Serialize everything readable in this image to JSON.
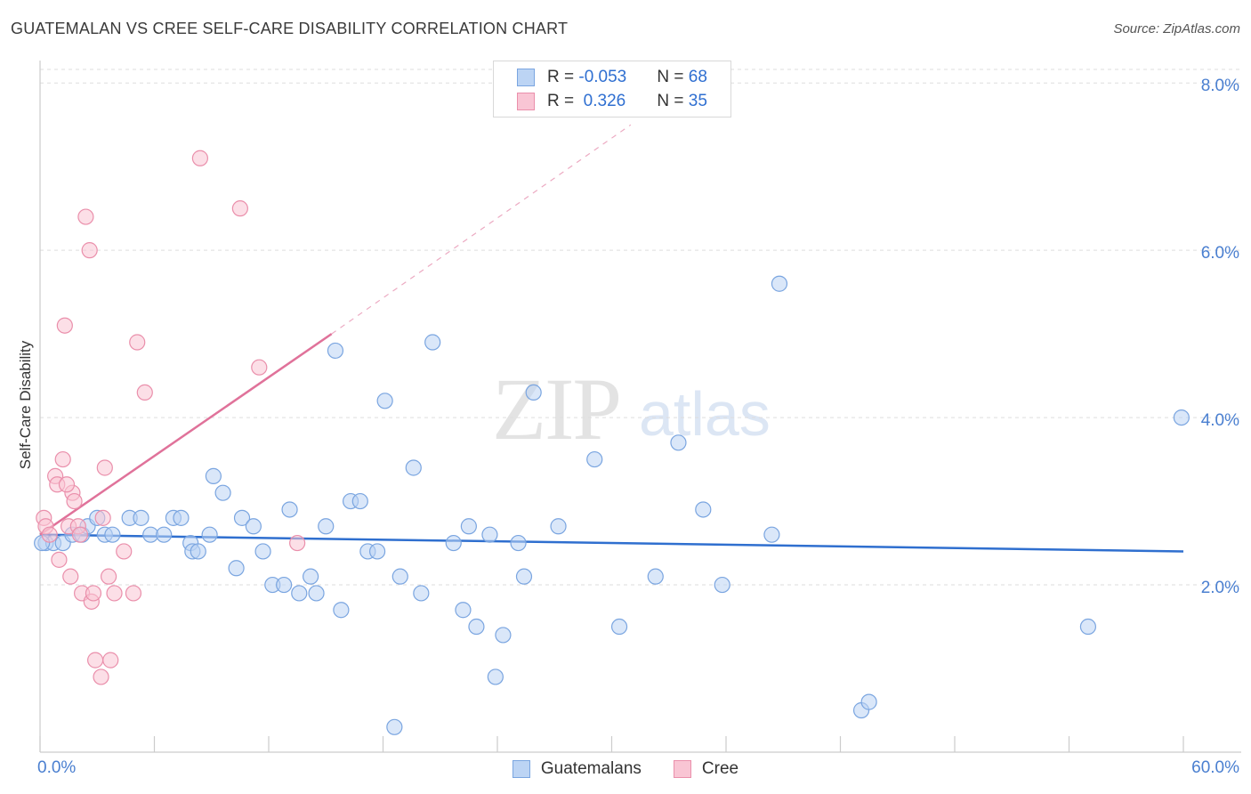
{
  "title": "GUATEMALAN VS CREE SELF-CARE DISABILITY CORRELATION CHART",
  "source": "Source: ZipAtlas.com",
  "watermark": {
    "zip": "ZIP",
    "atlas": "atlas"
  },
  "legend": {
    "rows": [
      {
        "r_label": "R = ",
        "r_value": "-0.053",
        "n_label": "N = ",
        "n_value": "68"
      },
      {
        "r_label": "R = ",
        "r_value": " 0.326",
        "n_label": "N = ",
        "n_value": "35"
      }
    ]
  },
  "colors": {
    "blue_fill": "#bcd4f4",
    "blue_stroke": "#7aa5e0",
    "blue_line": "#2f6fcf",
    "pink_fill": "#f9c5d4",
    "pink_stroke": "#ea8fab",
    "pink_line": "#e0729a",
    "grid": "#dddddd",
    "axis": "#cccccc",
    "tick_label": "#4a7fd0"
  },
  "chart_data": {
    "type": "scatter",
    "title": "GUATEMALAN VS CREE SELF-CARE DISABILITY CORRELATION CHART",
    "xlabel": "",
    "ylabel": "Self-Care Disability",
    "xlim": [
      0,
      60
    ],
    "ylim": [
      0,
      8.3
    ],
    "x_tick_labels": [
      "0.0%",
      "60.0%"
    ],
    "y_ticks": [
      2,
      4,
      6,
      8
    ],
    "y_tick_labels": [
      "2.0%",
      "4.0%",
      "6.0%",
      "8.0%"
    ],
    "grid": true,
    "legend_position": "top-center",
    "series": [
      {
        "name": "Guatemalans",
        "r": -0.053,
        "n": 68,
        "trend": {
          "x0": 0,
          "y0": 2.6,
          "x1": 60,
          "y1": 2.4
        },
        "points": [
          [
            0.3,
            2.5
          ],
          [
            0.7,
            2.5
          ],
          [
            1.2,
            2.5
          ],
          [
            1.7,
            2.6
          ],
          [
            2.2,
            2.6
          ],
          [
            2.5,
            2.7
          ],
          [
            3.0,
            2.8
          ],
          [
            3.4,
            2.6
          ],
          [
            3.8,
            2.6
          ],
          [
            4.7,
            2.8
          ],
          [
            5.3,
            2.8
          ],
          [
            5.8,
            2.6
          ],
          [
            6.5,
            2.6
          ],
          [
            7.0,
            2.8
          ],
          [
            7.4,
            2.8
          ],
          [
            7.9,
            2.5
          ],
          [
            8.0,
            2.4
          ],
          [
            8.3,
            2.4
          ],
          [
            8.9,
            2.6
          ],
          [
            9.1,
            3.3
          ],
          [
            9.6,
            3.1
          ],
          [
            10.3,
            2.2
          ],
          [
            10.6,
            2.8
          ],
          [
            11.2,
            2.7
          ],
          [
            11.7,
            2.4
          ],
          [
            12.2,
            2.0
          ],
          [
            12.8,
            2.0
          ],
          [
            13.1,
            2.9
          ],
          [
            13.6,
            1.9
          ],
          [
            14.2,
            2.1
          ],
          [
            14.5,
            1.9
          ],
          [
            15.0,
            2.7
          ],
          [
            15.5,
            4.8
          ],
          [
            15.8,
            1.7
          ],
          [
            16.3,
            3.0
          ],
          [
            16.8,
            3.0
          ],
          [
            17.2,
            2.4
          ],
          [
            17.7,
            2.4
          ],
          [
            18.1,
            4.2
          ],
          [
            18.6,
            0.3
          ],
          [
            18.9,
            2.1
          ],
          [
            19.6,
            3.4
          ],
          [
            20.0,
            1.9
          ],
          [
            20.6,
            4.9
          ],
          [
            21.7,
            2.5
          ],
          [
            22.2,
            1.7
          ],
          [
            22.5,
            2.7
          ],
          [
            22.9,
            1.5
          ],
          [
            23.6,
            2.6
          ],
          [
            23.9,
            0.9
          ],
          [
            24.3,
            1.4
          ],
          [
            25.1,
            2.5
          ],
          [
            25.4,
            2.1
          ],
          [
            25.9,
            4.3
          ],
          [
            27.2,
            2.7
          ],
          [
            29.1,
            3.5
          ],
          [
            30.4,
            1.5
          ],
          [
            32.3,
            2.1
          ],
          [
            33.5,
            3.7
          ],
          [
            34.8,
            2.9
          ],
          [
            35.8,
            2.0
          ],
          [
            38.4,
            2.6
          ],
          [
            38.8,
            5.6
          ],
          [
            43.1,
            0.5
          ],
          [
            43.5,
            0.6
          ],
          [
            55.0,
            1.5
          ],
          [
            59.9,
            4.0
          ],
          [
            0.1,
            2.5
          ]
        ]
      },
      {
        "name": "Cree",
        "r": 0.326,
        "n": 35,
        "trend": {
          "x0": 0,
          "y0": 2.6,
          "x1": 15.3,
          "y1": 5.0
        },
        "trend_dashed": {
          "x0": 15.3,
          "y0": 5.0,
          "x1": 31.0,
          "y1": 7.5
        },
        "points": [
          [
            0.2,
            2.8
          ],
          [
            0.3,
            2.7
          ],
          [
            0.5,
            2.6
          ],
          [
            0.8,
            3.3
          ],
          [
            0.9,
            3.2
          ],
          [
            1.0,
            2.3
          ],
          [
            1.2,
            3.5
          ],
          [
            1.3,
            5.1
          ],
          [
            1.5,
            2.7
          ],
          [
            1.6,
            2.1
          ],
          [
            1.7,
            3.1
          ],
          [
            1.8,
            3.0
          ],
          [
            2.0,
            2.7
          ],
          [
            2.1,
            2.6
          ],
          [
            2.2,
            1.9
          ],
          [
            2.4,
            6.4
          ],
          [
            2.6,
            6.0
          ],
          [
            2.7,
            1.8
          ],
          [
            2.8,
            1.9
          ],
          [
            2.9,
            1.1
          ],
          [
            3.2,
            0.9
          ],
          [
            3.3,
            2.8
          ],
          [
            3.4,
            3.4
          ],
          [
            3.6,
            2.1
          ],
          [
            3.7,
            1.1
          ],
          [
            3.9,
            1.9
          ],
          [
            4.4,
            2.4
          ],
          [
            4.9,
            1.9
          ],
          [
            5.1,
            4.9
          ],
          [
            5.5,
            4.3
          ],
          [
            8.4,
            7.1
          ],
          [
            10.5,
            6.5
          ],
          [
            11.5,
            4.6
          ],
          [
            13.5,
            2.5
          ],
          [
            1.4,
            3.2
          ]
        ]
      }
    ]
  }
}
